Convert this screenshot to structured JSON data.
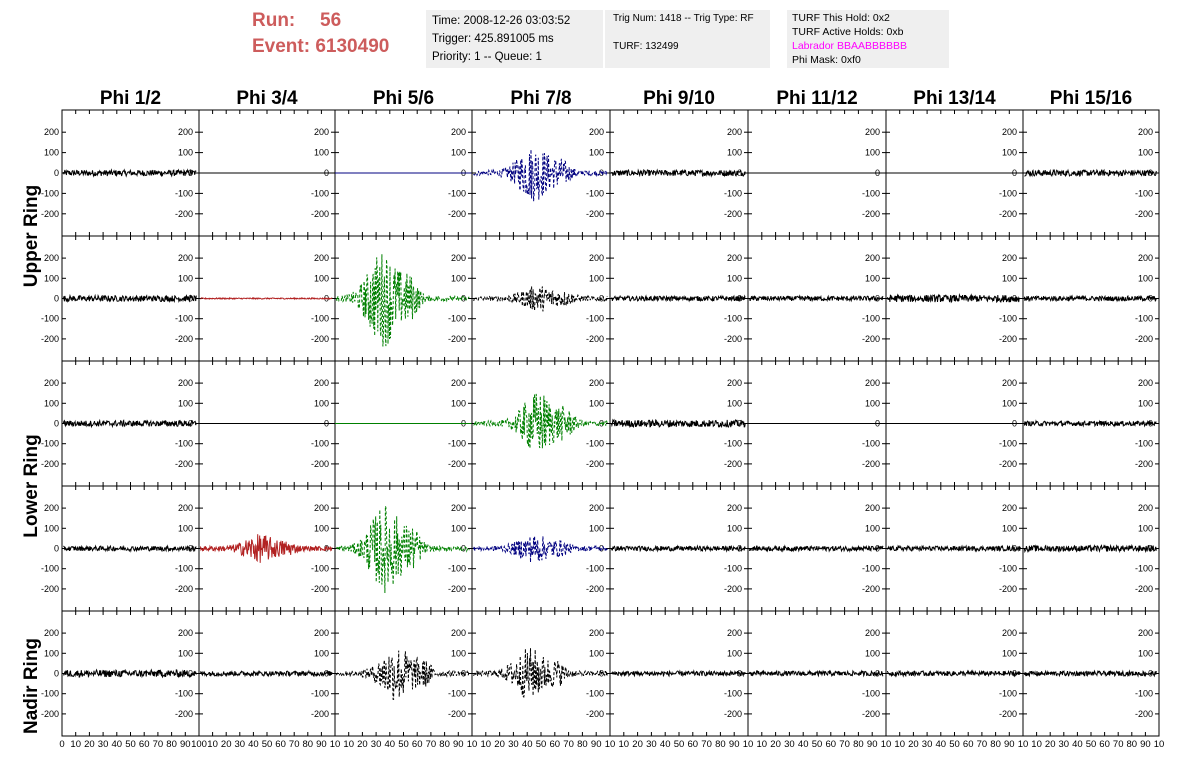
{
  "header": {
    "run_label": "Run:",
    "run_value": "56",
    "event_label": "Event:",
    "event_value": "6130490",
    "time": "Time: 2008-12-26 03:03:52",
    "trigger": "Trigger: 425.891005 ms",
    "priority": "Priority: 1 -- Queue: 1",
    "trig_num": "Trig Num: 1418 -- Trig Type: RF",
    "turf": "TURF: 132499",
    "turf_this_hold": "TURF This Hold: 0x2",
    "turf_active_holds": "TURF Active Holds: 0xb",
    "labrador": "Labrador BBAABBBBBB",
    "phi_mask": "Phi Mask: 0xf0"
  },
  "chart_data": {
    "type": "line",
    "columns": [
      "Phi 1/2",
      "Phi 3/4",
      "Phi 5/6",
      "Phi 7/8",
      "Phi 9/10",
      "Phi 11/12",
      "Phi 13/14",
      "Phi 15/16"
    ],
    "rows": [
      "Upper Ring",
      "Upper Ring",
      "Lower Ring",
      "Lower Ring",
      "Nadir Ring"
    ],
    "row_labels": [
      "Upper Ring",
      "Lower Ring",
      "Nadir Ring"
    ],
    "xlim": [
      0,
      100
    ],
    "ylim": [
      -250,
      250
    ],
    "y_ticks": [
      -200,
      -100,
      0,
      100,
      200
    ],
    "y_tick_labels": [
      "-200",
      "-100",
      "0",
      "100",
      "200"
    ],
    "x_ticks_first": [
      "0",
      "10",
      "20",
      "30",
      "40",
      "50",
      "60",
      "70",
      "80",
      "90",
      "100"
    ],
    "x_ticks_rest": [
      "10",
      "20",
      "30",
      "40",
      "50",
      "60",
      "70",
      "80",
      "90",
      "10"
    ],
    "colors": {
      "noise": "#000000",
      "blue": "#000080",
      "green": "#008000",
      "red": "#b22222",
      "flat": "#000000"
    },
    "panels": [
      [
        {
          "kind": "noise",
          "amp": 15
        },
        {
          "kind": "flat",
          "color": "flat"
        },
        {
          "kind": "flat",
          "color": "blue"
        },
        {
          "kind": "burst",
          "color": "blue",
          "dash": true,
          "amp": 130,
          "center": 45
        },
        {
          "kind": "noise",
          "amp": 15
        },
        {
          "kind": "flat",
          "color": "flat"
        },
        {
          "kind": "flat",
          "color": "flat"
        },
        {
          "kind": "noise",
          "amp": 15
        }
      ],
      [
        {
          "kind": "noise",
          "amp": 15
        },
        {
          "kind": "noise",
          "color": "red",
          "amp": 3
        },
        {
          "kind": "burst",
          "color": "green",
          "dash": true,
          "amp": 230,
          "center": 35
        },
        {
          "kind": "burst",
          "color": "noise",
          "dash": true,
          "amp": 55,
          "center": 48
        },
        {
          "kind": "noise",
          "amp": 12
        },
        {
          "kind": "noise",
          "amp": 12
        },
        {
          "kind": "noise",
          "amp": 18
        },
        {
          "kind": "noise",
          "amp": 12
        }
      ],
      [
        {
          "kind": "noise",
          "amp": 15
        },
        {
          "kind": "flat",
          "color": "flat"
        },
        {
          "kind": "flat",
          "color": "green"
        },
        {
          "kind": "burst",
          "color": "green",
          "dash": true,
          "amp": 150,
          "center": 48
        },
        {
          "kind": "noise",
          "amp": 18
        },
        {
          "kind": "flat",
          "color": "flat"
        },
        {
          "kind": "flat",
          "color": "flat"
        },
        {
          "kind": "noise",
          "amp": 12
        }
      ],
      [
        {
          "kind": "noise",
          "amp": 12
        },
        {
          "kind": "burst",
          "color": "red",
          "amp": 60,
          "center": 45
        },
        {
          "kind": "burst",
          "color": "green",
          "dash": true,
          "amp": 210,
          "center": 37
        },
        {
          "kind": "burst",
          "color": "blue",
          "dash": true,
          "amp": 60,
          "center": 45
        },
        {
          "kind": "noise",
          "amp": 12
        },
        {
          "kind": "noise",
          "amp": 12
        },
        {
          "kind": "noise",
          "amp": 12
        },
        {
          "kind": "noise",
          "amp": 15
        }
      ],
      [
        {
          "kind": "noise",
          "amp": 18
        },
        {
          "kind": "noise",
          "amp": 12
        },
        {
          "kind": "burst",
          "color": "noise",
          "dash": true,
          "amp": 130,
          "center": 45
        },
        {
          "kind": "burst",
          "color": "noise",
          "dash": true,
          "amp": 120,
          "center": 42
        },
        {
          "kind": "noise",
          "amp": 12
        },
        {
          "kind": "noise",
          "amp": 12
        },
        {
          "kind": "noise",
          "amp": 12
        },
        {
          "kind": "noise",
          "amp": 12
        }
      ]
    ]
  }
}
